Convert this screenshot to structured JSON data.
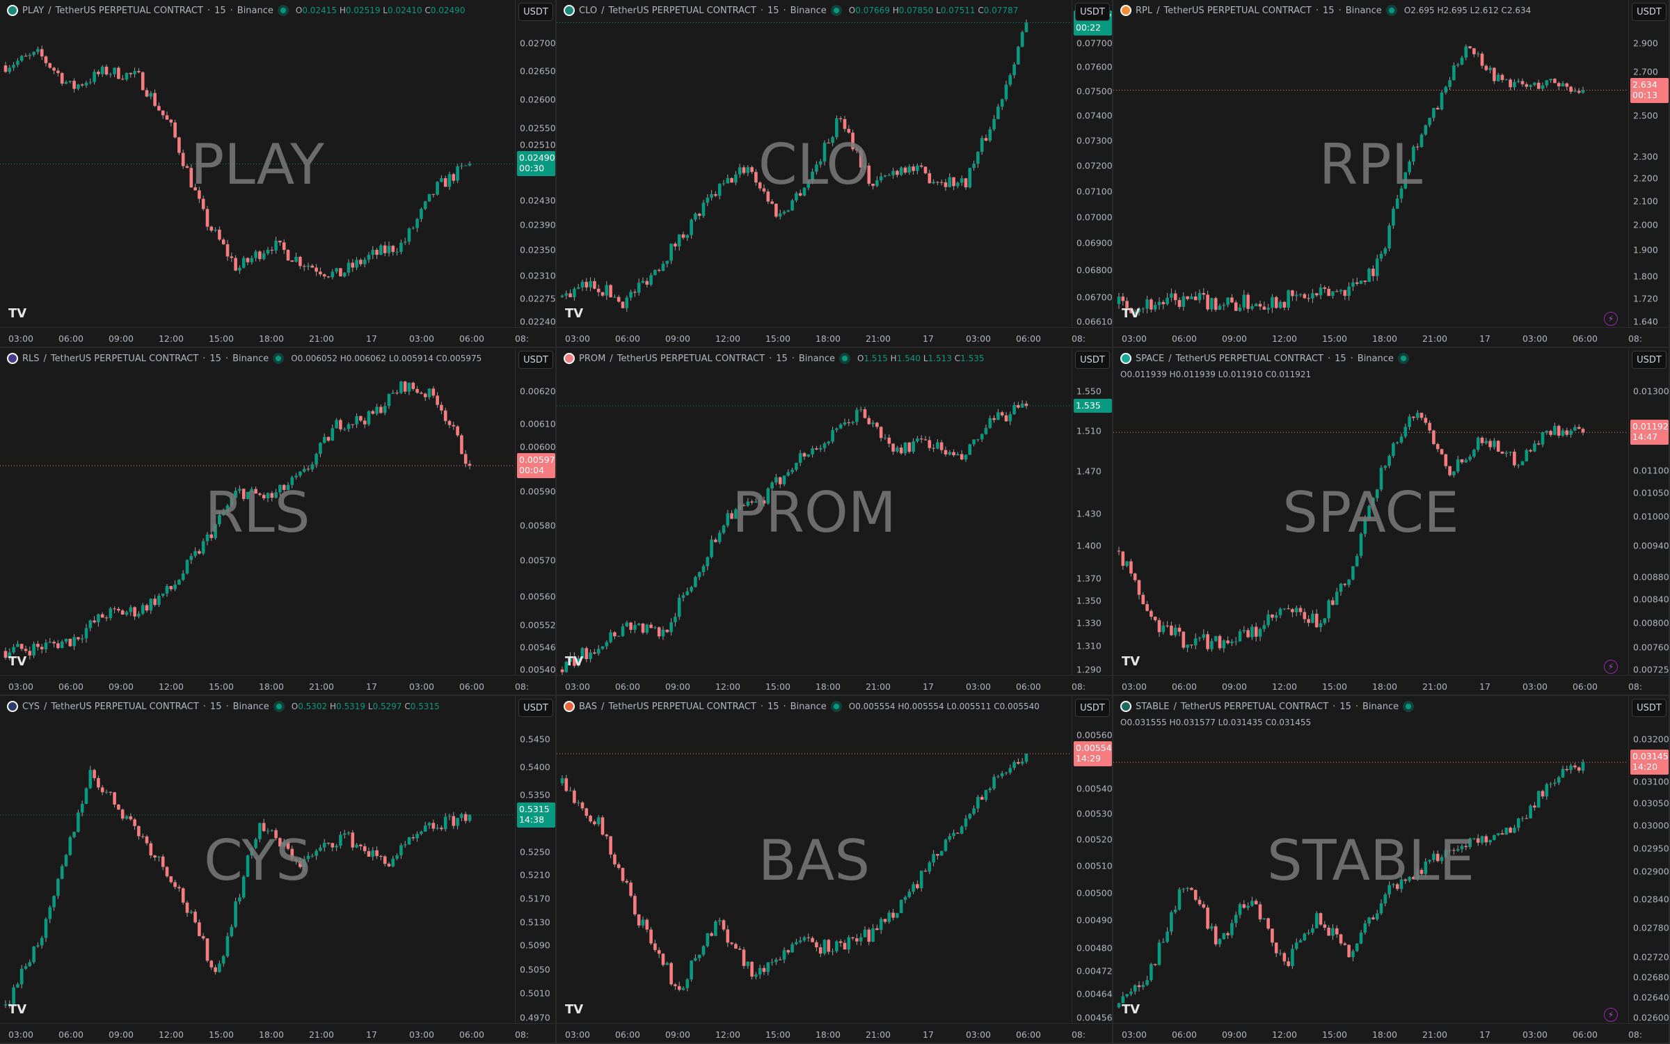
{
  "colors": {
    "up": "#089981",
    "down": "#f77c80",
    "bg": "#1a1a1a"
  },
  "common": {
    "contract": "TetherUS PERPETUAL CONTRACT",
    "interval": "15",
    "exchange": "Binance",
    "currency": "USDT",
    "x_ticks": [
      "03:00",
      "06:00",
      "09:00",
      "12:00",
      "15:00",
      "18:00",
      "21:00",
      "17",
      "03:00",
      "06:00",
      "08:"
    ],
    "logo": "TV",
    "bolt_icon": "lightning-icon"
  },
  "chart_data": [
    {
      "type": "candlestick",
      "symbol": "PLAY",
      "coin_color": "#1c8a7a",
      "ohlc": {
        "O": "0.02415",
        "H": "0.02519",
        "L": "0.02410",
        "C": "0.02490"
      },
      "ohlc_color": "#089981",
      "ohlc_wrap": false,
      "last": "0.02490",
      "countdown": "00:30",
      "last_dir": "up",
      "y_ticks": [
        "0.02700",
        "0.02650",
        "0.02600",
        "0.02550",
        "0.02510",
        "0.02430",
        "0.02390",
        "0.02350",
        "0.02310",
        "0.02275",
        "0.02240"
      ],
      "path": [
        0.0266,
        0.0268,
        0.0262,
        0.0265,
        0.0264,
        0.0255,
        0.024,
        0.0232,
        0.0236,
        0.0233,
        0.0231,
        0.0234,
        0.0236,
        0.0245,
        0.0249
      ],
      "bolt": false
    },
    {
      "type": "candlestick",
      "symbol": "CLO",
      "coin_color": "#1c8a7a",
      "ohlc": {
        "O": "0.07669",
        "H": "0.07850",
        "L": "0.07511",
        "C": "0.07787"
      },
      "ohlc_color": "#089981",
      "ohlc_wrap": false,
      "last": "0.07787",
      "countdown": "00:22",
      "last_dir": "up",
      "y_ticks": [
        "0.07700",
        "0.07600",
        "0.07500",
        "0.07400",
        "0.07300",
        "0.07200",
        "0.07100",
        "0.07000",
        "0.06900",
        "0.06800",
        "0.06700",
        "0.06610"
      ],
      "path": [
        0.067,
        0.0675,
        0.0668,
        0.068,
        0.0695,
        0.071,
        0.072,
        0.07,
        0.0715,
        0.074,
        0.0712,
        0.072,
        0.0715,
        0.0713,
        0.074,
        0.0779
      ],
      "bolt": false
    },
    {
      "type": "candlestick",
      "symbol": "RPL",
      "coin_color": "#f28c38",
      "ohlc": {
        "O": "2.695",
        "H": "2.695",
        "L": "2.612",
        "C": "2.634"
      },
      "ohlc_color": "#b2b5be",
      "ohlc_wrap": false,
      "last": "2.634",
      "countdown": "00:13",
      "last_dir": "down",
      "y_ticks": [
        "2.900",
        "2.700",
        "2.500",
        "2.300",
        "2.200",
        "2.100",
        "2.000",
        "1.900",
        "1.800",
        "1.720",
        "1.640"
      ],
      "path": [
        1.7,
        1.7,
        1.71,
        1.71,
        1.7,
        1.71,
        1.72,
        1.73,
        1.76,
        1.85,
        2.3,
        2.55,
        2.9,
        2.7,
        2.65,
        2.68,
        2.63
      ],
      "bolt": true
    },
    {
      "type": "candlestick",
      "symbol": "RLS",
      "coin_color": "#4a3a8a",
      "ohlc": {
        "O": "0.006052",
        "H": "0.006062",
        "L": "0.005914",
        "C": "0.005975"
      },
      "ohlc_color": "#b2b5be",
      "ohlc_wrap": false,
      "last": "0.005975",
      "countdown": "00:04",
      "last_dir": "down",
      "y_ticks": [
        "0.006200",
        "0.006100",
        "0.006000",
        "0.005900",
        "0.005800",
        "0.005700",
        "0.005600",
        "0.005520",
        "0.005460",
        "0.005400"
      ],
      "path": [
        0.00545,
        0.00546,
        0.00548,
        0.00555,
        0.00556,
        0.00562,
        0.00575,
        0.0059,
        0.00588,
        0.00595,
        0.0061,
        0.00612,
        0.00622,
        0.00618,
        0.005975
      ],
      "bolt": false
    },
    {
      "type": "candlestick",
      "symbol": "PROM",
      "coin_color": "#f08080",
      "ohlc": {
        "O": "1.515",
        "H": "1.540",
        "L": "1.513",
        "C": "1.535"
      },
      "ohlc_color": "#089981",
      "ohlc_wrap": false,
      "last": "1.535",
      "countdown": "",
      "last_dir": "up",
      "y_ticks": [
        "1.550",
        "1.510",
        "1.470",
        "1.430",
        "1.400",
        "1.370",
        "1.350",
        "1.330",
        "1.310",
        "1.290"
      ],
      "path": [
        1.29,
        1.31,
        1.33,
        1.32,
        1.37,
        1.43,
        1.44,
        1.48,
        1.5,
        1.53,
        1.49,
        1.5,
        1.48,
        1.52,
        1.535
      ],
      "bolt": false
    },
    {
      "type": "candlestick",
      "symbol": "SPACE",
      "coin_color": "#1aa89a",
      "ohlc": {
        "O": "0.011939",
        "H": "0.011939",
        "L": "0.011910",
        "C": "0.011921"
      },
      "ohlc_color": "#b2b5be",
      "ohlc_wrap": true,
      "last": "0.011921",
      "countdown": "14:47",
      "last_dir": "down",
      "y_ticks": [
        "0.013000",
        "0.011000",
        "0.010500",
        "0.010000",
        "0.009400",
        "0.008800",
        "0.008400",
        "0.008000",
        "0.007600",
        "0.007250"
      ],
      "path": [
        0.0093,
        0.008,
        0.0077,
        0.0077,
        0.0078,
        0.0082,
        0.008,
        0.0088,
        0.0112,
        0.0125,
        0.011,
        0.0118,
        0.0112,
        0.012,
        0.01192
      ],
      "bolt": true
    },
    {
      "type": "candlestick",
      "symbol": "CYS",
      "coin_color": "#2a3a6a",
      "ohlc": {
        "O": "0.5302",
        "H": "0.5319",
        "L": "0.5297",
        "C": "0.5315"
      },
      "ohlc_color": "#089981",
      "ohlc_wrap": false,
      "last": "0.5315",
      "countdown": "14:38",
      "last_dir": "up",
      "y_ticks": [
        "0.5450",
        "0.5400",
        "0.5350",
        "0.5250",
        "0.5210",
        "0.5170",
        "0.5130",
        "0.5090",
        "0.5050",
        "0.5010",
        "0.4970"
      ],
      "path": [
        0.499,
        0.513,
        0.539,
        0.53,
        0.52,
        0.504,
        0.53,
        0.523,
        0.528,
        0.523,
        0.529,
        0.5315
      ],
      "bolt": false
    },
    {
      "type": "candlestick",
      "symbol": "BAS",
      "coin_color": "#e8643a",
      "ohlc": {
        "O": "0.005554",
        "H": "0.005554",
        "L": "0.005511",
        "C": "0.005540"
      },
      "ohlc_color": "#b2b5be",
      "ohlc_wrap": false,
      "last": "0.005540",
      "countdown": "14:29",
      "last_dir": "down",
      "y_ticks": [
        "0.005600",
        "0.005400",
        "0.005300",
        "0.005200",
        "0.005100",
        "0.005000",
        "0.004900",
        "0.004800",
        "0.004720",
        "0.004640",
        "0.004560"
      ],
      "path": [
        0.00542,
        0.00525,
        0.0049,
        0.00465,
        0.0049,
        0.0047,
        0.00482,
        0.0048,
        0.00485,
        0.005,
        0.0052,
        0.0054,
        0.00554
      ],
      "bolt": false
    },
    {
      "type": "candlestick",
      "symbol": "STABLE",
      "coin_color": "#1c6a5a",
      "ohlc": {
        "O": "0.031555",
        "H": "0.031577",
        "L": "0.031435",
        "C": "0.031455"
      },
      "ohlc_color": "#b2b5be",
      "ohlc_wrap": true,
      "last": "0.031455",
      "countdown": "14:20",
      "last_dir": "down",
      "y_ticks": [
        "0.032000",
        "0.031000",
        "0.030500",
        "0.030000",
        "0.029500",
        "0.029000",
        "0.028400",
        "0.027800",
        "0.027200",
        "0.026800",
        "0.026400",
        "0.026000"
      ],
      "path": [
        0.0262,
        0.027,
        0.0288,
        0.0275,
        0.0285,
        0.027,
        0.028,
        0.0273,
        0.0285,
        0.029,
        0.0295,
        0.0297,
        0.03,
        0.031,
        0.031455
      ],
      "bolt": true
    }
  ]
}
